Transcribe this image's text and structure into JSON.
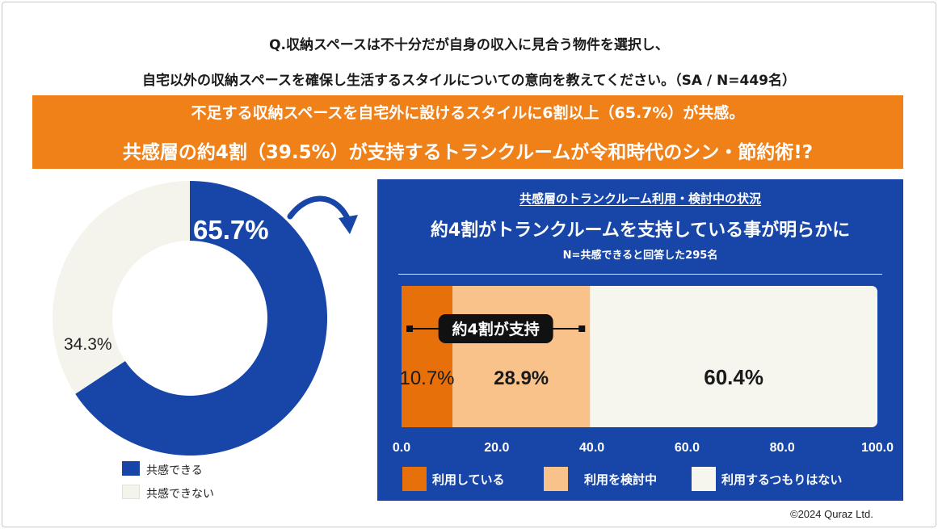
{
  "header": {
    "question_line1": "Q.収納スペースは不十分だが自身の収入に見合う物件を選択し、",
    "question_line2": "自宅以外の収納スペースを確保し生活するスタイルについての意向を教えてください。（SA / N=449名）"
  },
  "banner": {
    "line1": "不足する収納スペースを自宅外に設けるスタイルに6割以上（65.7%）が共感。",
    "line2": "共感層の約4割（39.5%）が支持するトランクルームが令和時代のシン・節約術!?"
  },
  "panel": {
    "subtitle": "共感層のトランクルーム利用・検討中の状況",
    "headline": "約4割がトランクルームを支持している事が明らかに",
    "note": "N=共感できると回答した295名",
    "bracket_label": "約4割が支持"
  },
  "colors": {
    "brand_blue": "#1746a8",
    "orange": "#f08018",
    "dark_orange": "#e8700a",
    "light_orange": "#f9c28a",
    "cream": "#f6f6ee"
  },
  "chart_data": [
    {
      "type": "pie",
      "variant": "donut",
      "slices": [
        {
          "label": "共感できる",
          "value": 65.7,
          "display": "65.7%",
          "color": "#1746a8"
        },
        {
          "label": "共感できない",
          "value": 34.3,
          "display": "34.3%",
          "color": "#f4f4ec"
        }
      ],
      "legend": [
        "共感できる",
        "共感できない"
      ]
    },
    {
      "type": "bar",
      "orientation": "horizontal",
      "stacked": true,
      "xlim": [
        0,
        100
      ],
      "x_ticks": [
        "0.0",
        "20.0",
        "40.0",
        "60.0",
        "80.0",
        "100.0"
      ],
      "series": [
        {
          "name": "利用している",
          "value": 10.7,
          "display": "10.7%",
          "color": "#e8700a"
        },
        {
          "name": "利用を検討中",
          "value": 28.9,
          "display": "28.9%",
          "color": "#f9c28a"
        },
        {
          "name": "利用するつもりはない",
          "value": 60.4,
          "display": "60.4%",
          "color": "#f6f6ee"
        }
      ]
    }
  ],
  "footer": {
    "copyright": "©2024 Quraz Ltd."
  }
}
